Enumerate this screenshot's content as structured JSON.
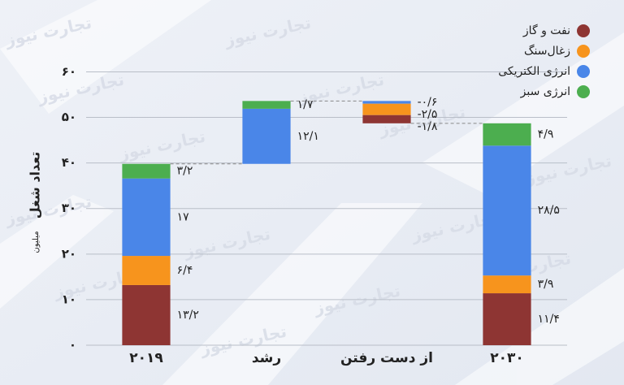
{
  "chart_data": {
    "type": "waterfall",
    "y_label": "تعداد شغل",
    "y_unit": "میلیون",
    "watermark": "تجارت نیوز",
    "categories": [
      "۲۰۱۹",
      "رشد",
      "از دست رفتن",
      "۲۰۳۰"
    ],
    "series": [
      {
        "name": "نفت و گاز",
        "color": "#8e3533",
        "values": [
          13.2,
          null,
          -1.8,
          11.4
        ],
        "value_labels": [
          "۱۳/۲",
          null,
          "-۱/۸",
          "۱۱/۴"
        ]
      },
      {
        "name": "زغال‌سنگ",
        "color": "#f7941d",
        "values": [
          6.4,
          null,
          -2.5,
          3.9
        ],
        "value_labels": [
          "۶/۴",
          null,
          "-۲/۵",
          "۳/۹"
        ]
      },
      {
        "name": "انرژی الکتریکی",
        "color": "#4a86e8",
        "values": [
          17,
          12.1,
          -0.6,
          28.5
        ],
        "value_labels": [
          "۱۷",
          "۱۲/۱",
          "-۰/۶",
          "۲۸/۵"
        ]
      },
      {
        "name": "انرژی سبز",
        "color": "#4cae4f",
        "values": [
          3.2,
          1.7,
          null,
          4.9
        ],
        "value_labels": [
          "۳/۲",
          "۱/۷",
          null,
          "۴/۹"
        ]
      }
    ],
    "ylim": [
      0,
      64
    ],
    "yticks": [
      {
        "value": 0,
        "label": "۰"
      },
      {
        "value": 10,
        "label": "۱۰"
      },
      {
        "value": 20,
        "label": "۲۰"
      },
      {
        "value": 30,
        "label": "۳۰"
      },
      {
        "value": 40,
        "label": "۴۰"
      },
      {
        "value": 50,
        "label": "۵۰"
      },
      {
        "value": 60,
        "label": "۶۰"
      }
    ],
    "grid": true,
    "legend": "top-right"
  }
}
